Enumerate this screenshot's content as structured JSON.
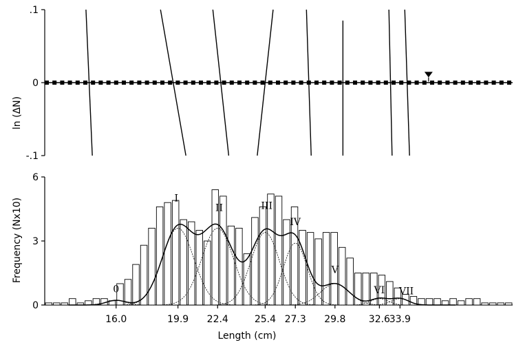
{
  "chart_data": [
    {
      "type": "line",
      "panel": "top",
      "ylabel": "ln (ΔN)",
      "ylim": [
        -0.1,
        0.1
      ],
      "y_ticks": [
        ".1",
        "0",
        "-.1"
      ],
      "x_domain": [
        11.5,
        41.0
      ],
      "zero_line": {
        "style": "dashed-square-markers"
      },
      "marker": {
        "type": "triangle-down",
        "x": 35.7,
        "y": 0.01
      },
      "segments": [
        {
          "x1": 14.1,
          "y1": 0.1,
          "x2": 14.5,
          "y2": -0.1
        },
        {
          "x1": 18.8,
          "y1": 0.1,
          "x2": 20.4,
          "y2": -0.1
        },
        {
          "x1": 22.1,
          "y1": 0.1,
          "x2": 23.1,
          "y2": -0.1
        },
        {
          "x1": 25.9,
          "y1": 0.1,
          "x2": 24.9,
          "y2": -0.1
        },
        {
          "x1": 28.0,
          "y1": 0.1,
          "x2": 28.3,
          "y2": -0.1
        },
        {
          "x1": 30.3,
          "y1": 0.085,
          "x2": 30.3,
          "y2": -0.1
        },
        {
          "x1": 33.2,
          "y1": 0.1,
          "x2": 33.4,
          "y2": -0.1
        },
        {
          "x1": 34.2,
          "y1": 0.1,
          "x2": 34.5,
          "y2": -0.1
        }
      ]
    },
    {
      "type": "bar",
      "panel": "bottom",
      "xlabel": "Length (cm)",
      "ylabel": "Frequency (Nx10)",
      "ylim": [
        0,
        6
      ],
      "y_ticks": [
        "0",
        "3",
        "6"
      ],
      "x_ticks": [
        "16.0",
        "19.9",
        "22.4",
        "25.4",
        "27.3",
        "29.8",
        "32.6",
        "33.9"
      ],
      "x_tick_values": [
        16.0,
        19.9,
        22.4,
        25.4,
        27.3,
        29.8,
        32.6,
        33.9
      ],
      "x_domain": [
        11.5,
        41.0
      ],
      "bin_start": 11.5,
      "bin_width": 0.5,
      "values": [
        0.1,
        0.1,
        0.1,
        0.3,
        0.1,
        0.2,
        0.3,
        0.3,
        0.2,
        1.0,
        1.2,
        1.9,
        2.8,
        3.6,
        4.6,
        4.8,
        4.9,
        4.0,
        3.9,
        3.5,
        3.0,
        5.4,
        5.1,
        3.7,
        3.6,
        2.4,
        4.1,
        4.6,
        5.2,
        5.1,
        4.0,
        4.6,
        3.5,
        3.4,
        3.1,
        3.4,
        3.4,
        2.7,
        2.2,
        1.5,
        1.5,
        1.5,
        1.4,
        1.1,
        0.8,
        0.5,
        0.4,
        0.3,
        0.3,
        0.3,
        0.2,
        0.3,
        0.2,
        0.3,
        0.3,
        0.1,
        0.1,
        0.1,
        0.1
      ],
      "components": [
        {
          "label": "0",
          "mean": 16.0,
          "sd": 0.6,
          "peak": 0.22
        },
        {
          "label": "I",
          "mean": 19.9,
          "sd": 1.0,
          "peak": 3.6
        },
        {
          "label": "II",
          "mean": 22.4,
          "sd": 1.0,
          "peak": 3.6
        },
        {
          "label": "III",
          "mean": 25.4,
          "sd": 0.9,
          "peak": 3.4
        },
        {
          "label": "IV",
          "mean": 27.3,
          "sd": 0.75,
          "peak": 2.9
        },
        {
          "label": "V",
          "mean": 29.8,
          "sd": 0.9,
          "peak": 1.0
        },
        {
          "label": "VI",
          "mean": 32.6,
          "sd": 0.55,
          "peak": 0.3
        },
        {
          "label": "VII",
          "mean": 33.9,
          "sd": 0.55,
          "peak": 0.3
        }
      ],
      "component_labels": [
        {
          "text": "0",
          "x": 16.0,
          "y": 0.6
        },
        {
          "text": "I",
          "x": 19.8,
          "y": 4.85
        },
        {
          "text": "II",
          "x": 22.5,
          "y": 4.4
        },
        {
          "text": "III",
          "x": 25.5,
          "y": 4.5
        },
        {
          "text": "IV",
          "x": 27.3,
          "y": 3.75
        },
        {
          "text": "V",
          "x": 29.8,
          "y": 1.5
        },
        {
          "text": "VI",
          "x": 32.6,
          "y": 0.55
        },
        {
          "text": "VII",
          "x": 34.3,
          "y": 0.5
        }
      ]
    }
  ]
}
